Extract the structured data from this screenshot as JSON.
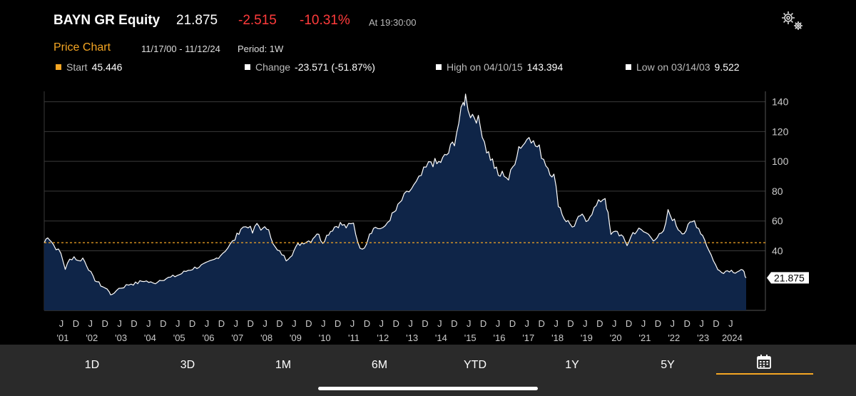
{
  "header": {
    "title": "BAYN GR Equity",
    "price": "21.875",
    "change": "-2.515",
    "change_pct": "-10.31%",
    "time": "At 19:30:00"
  },
  "subheader": {
    "chart_label": "Price Chart",
    "range": "11/17/00 - 11/12/24",
    "period": "Period: 1W"
  },
  "legend": {
    "start_label": "Start",
    "start_value": "45.446",
    "change_label": "Change",
    "change_value": "-23.571 (-51.87%)",
    "high_label": "High on 04/10/15",
    "high_value": "143.394",
    "low_label": "Low on 03/14/03",
    "low_value": "9.522"
  },
  "colors": {
    "accent": "#f5a623",
    "negative": "#ff3b3b",
    "area_fill": "#0f2548",
    "line": "#ffffff"
  },
  "tabs": [
    "1D",
    "3D",
    "1M",
    "6M",
    "YTD",
    "1Y",
    "5Y"
  ],
  "calendar_icon": "calendar-icon",
  "chart_data": {
    "type": "area",
    "title": "",
    "ylim": [
      0,
      147
    ],
    "yticks": [
      40,
      60,
      80,
      100,
      120,
      140
    ],
    "start_reference": 45.446,
    "last_value": 21.875,
    "last_label": "21.875",
    "grid": true,
    "x_months": [
      "J",
      "D",
      "J",
      "D",
      "J",
      "D",
      "J",
      "D",
      "J",
      "D",
      "J",
      "D",
      "J",
      "D",
      "J",
      "D",
      "J",
      "D",
      "J",
      "D",
      "J",
      "D",
      "J",
      "D",
      "J",
      "D",
      "J",
      "D",
      "J",
      "D",
      "J",
      "D",
      "J",
      "D",
      "J",
      "D",
      "J",
      "D",
      "J",
      "D",
      "J",
      "D",
      "J",
      "D",
      "J",
      "D",
      "J"
    ],
    "x_years": [
      "'01",
      "'02",
      "'03",
      "'04",
      "'05",
      "'06",
      "'07",
      "'08",
      "'09",
      "'10",
      "'11",
      "'12",
      "'13",
      "'14",
      "'15",
      "'16",
      "'17",
      "'18",
      "'19",
      "'20",
      "'21",
      "'22",
      "'23",
      "2024"
    ],
    "points": [
      [
        2000.88,
        45.4
      ],
      [
        2001.0,
        50
      ],
      [
        2001.2,
        44
      ],
      [
        2001.45,
        38
      ],
      [
        2001.6,
        28
      ],
      [
        2001.75,
        34
      ],
      [
        2001.9,
        36
      ],
      [
        2002.05,
        33
      ],
      [
        2002.2,
        35
      ],
      [
        2002.4,
        28
      ],
      [
        2002.55,
        22
      ],
      [
        2002.75,
        18
      ],
      [
        2002.95,
        15
      ],
      [
        2003.1,
        13
      ],
      [
        2003.2,
        9.5
      ],
      [
        2003.35,
        14
      ],
      [
        2003.6,
        16
      ],
      [
        2003.85,
        18
      ],
      [
        2004.0,
        18
      ],
      [
        2004.3,
        20
      ],
      [
        2004.6,
        18
      ],
      [
        2004.9,
        21
      ],
      [
        2005.2,
        22
      ],
      [
        2005.5,
        24
      ],
      [
        2005.8,
        27
      ],
      [
        2006.1,
        29
      ],
      [
        2006.4,
        31
      ],
      [
        2006.7,
        34
      ],
      [
        2006.9,
        37
      ],
      [
        2007.15,
        42
      ],
      [
        2007.4,
        48
      ],
      [
        2007.6,
        55
      ],
      [
        2007.85,
        57
      ],
      [
        2008.0,
        52
      ],
      [
        2008.15,
        58
      ],
      [
        2008.35,
        54
      ],
      [
        2008.55,
        56
      ],
      [
        2008.7,
        44
      ],
      [
        2008.85,
        40
      ],
      [
        2009.0,
        38
      ],
      [
        2009.15,
        34
      ],
      [
        2009.35,
        38
      ],
      [
        2009.55,
        44
      ],
      [
        2009.75,
        46
      ],
      [
        2010.0,
        47
      ],
      [
        2010.2,
        52
      ],
      [
        2010.4,
        46
      ],
      [
        2010.6,
        52
      ],
      [
        2010.8,
        56
      ],
      [
        2011.0,
        58
      ],
      [
        2011.2,
        56
      ],
      [
        2011.45,
        58
      ],
      [
        2011.6,
        46
      ],
      [
        2011.75,
        40
      ],
      [
        2011.9,
        46
      ],
      [
        2012.0,
        52
      ],
      [
        2012.2,
        56
      ],
      [
        2012.45,
        54
      ],
      [
        2012.7,
        62
      ],
      [
        2012.9,
        67
      ],
      [
        2013.1,
        74
      ],
      [
        2013.35,
        80
      ],
      [
        2013.6,
        85
      ],
      [
        2013.85,
        93
      ],
      [
        2014.1,
        100
      ],
      [
        2014.3,
        98
      ],
      [
        2014.5,
        101
      ],
      [
        2014.7,
        106
      ],
      [
        2014.9,
        114
      ],
      [
        2015.05,
        126
      ],
      [
        2015.2,
        138
      ],
      [
        2015.28,
        143.4
      ],
      [
        2015.45,
        132
      ],
      [
        2015.65,
        130
      ],
      [
        2015.85,
        120
      ],
      [
        2016.0,
        108
      ],
      [
        2016.2,
        100
      ],
      [
        2016.4,
        90
      ],
      [
        2016.6,
        92
      ],
      [
        2016.75,
        88
      ],
      [
        2016.9,
        96
      ],
      [
        2017.1,
        110
      ],
      [
        2017.3,
        112
      ],
      [
        2017.45,
        120
      ],
      [
        2017.6,
        112
      ],
      [
        2017.8,
        108
      ],
      [
        2017.95,
        102
      ],
      [
        2018.1,
        96
      ],
      [
        2018.3,
        90
      ],
      [
        2018.45,
        72
      ],
      [
        2018.65,
        62
      ],
      [
        2018.85,
        58
      ],
      [
        2019.0,
        56
      ],
      [
        2019.2,
        64
      ],
      [
        2019.4,
        60
      ],
      [
        2019.6,
        66
      ],
      [
        2019.75,
        70
      ],
      [
        2019.9,
        74
      ],
      [
        2020.05,
        76
      ],
      [
        2020.15,
        64
      ],
      [
        2020.25,
        50
      ],
      [
        2020.4,
        54
      ],
      [
        2020.6,
        50
      ],
      [
        2020.8,
        44
      ],
      [
        2021.0,
        52
      ],
      [
        2021.2,
        54
      ],
      [
        2021.45,
        52
      ],
      [
        2021.7,
        48
      ],
      [
        2021.9,
        50
      ],
      [
        2022.05,
        52
      ],
      [
        2022.2,
        66
      ],
      [
        2022.35,
        62
      ],
      [
        2022.55,
        55
      ],
      [
        2022.75,
        52
      ],
      [
        2022.95,
        58
      ],
      [
        2023.1,
        60
      ],
      [
        2023.25,
        55
      ],
      [
        2023.45,
        48
      ],
      [
        2023.6,
        40
      ],
      [
        2023.75,
        34
      ],
      [
        2023.9,
        27
      ],
      [
        2024.1,
        26
      ],
      [
        2024.3,
        27
      ],
      [
        2024.5,
        26
      ],
      [
        2024.7,
        27
      ],
      [
        2024.8,
        25
      ],
      [
        2024.87,
        21.9
      ]
    ]
  }
}
